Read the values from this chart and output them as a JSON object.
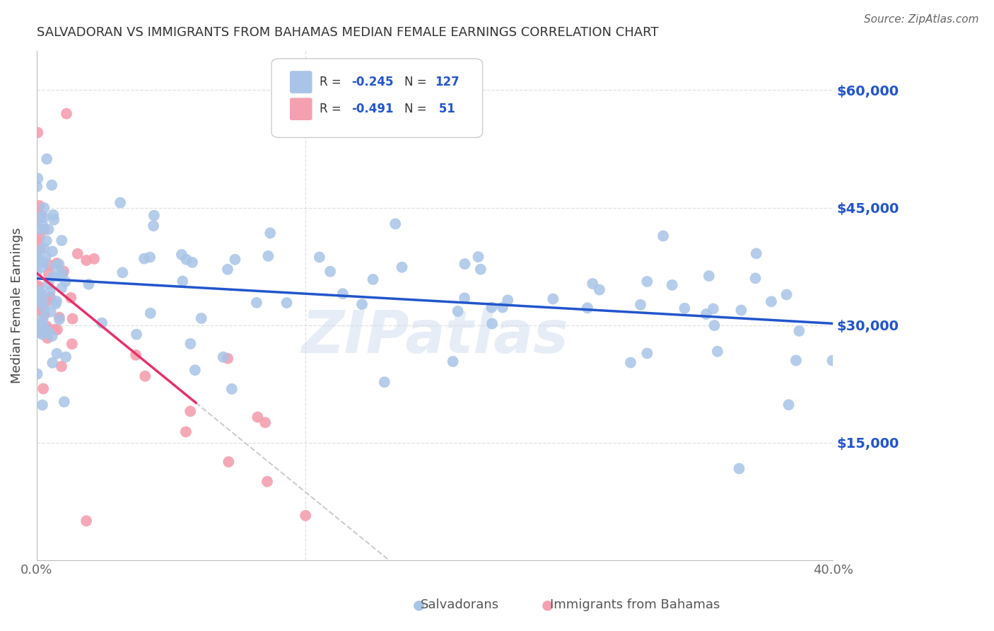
{
  "title": "SALVADORAN VS IMMIGRANTS FROM BAHAMAS MEDIAN FEMALE EARNINGS CORRELATION CHART",
  "source": "Source: ZipAtlas.com",
  "ylabel": "Median Female Earnings",
  "salvadoran_R": -0.245,
  "salvadoran_N": 127,
  "bahamas_R": -0.491,
  "bahamas_N": 51,
  "x_min": 0.0,
  "x_max": 0.4,
  "y_min": 0,
  "y_max": 65000,
  "y_ticks": [
    15000,
    30000,
    45000,
    60000
  ],
  "y_tick_labels": [
    "$15,000",
    "$30,000",
    "$45,000",
    "$60,000"
  ],
  "x_ticks": [
    0.0,
    0.1,
    0.2,
    0.3,
    0.4
  ],
  "x_tick_labels": [
    "0.0%",
    "",
    "",
    "",
    "40.0%"
  ],
  "blue_scatter_color": "#a8c4e8",
  "pink_scatter_color": "#f4a0b0",
  "blue_line_color": "#2255cc",
  "pink_line_color": "#e8306a",
  "grid_color": "#dddddd",
  "right_label_color": "#2255cc",
  "watermark": "ZIPatlas",
  "sal_intercept": 36500,
  "sal_slope": -16000,
  "bah_intercept": 38000,
  "bah_slope": -200000
}
